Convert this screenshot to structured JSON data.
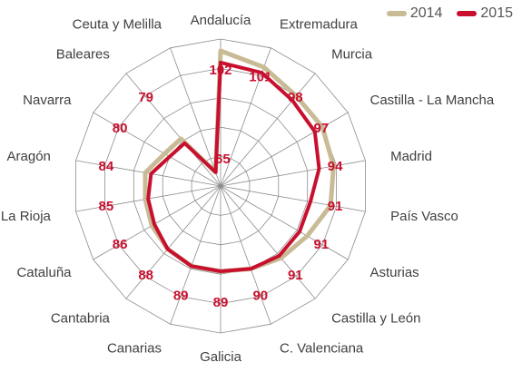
{
  "chart_data": {
    "type": "radar",
    "categories": [
      "Andalucía",
      "Extremadura",
      "Murcia",
      "Castilla - La Mancha",
      "Madrid",
      "País Vasco",
      "Asturias",
      "Castilla y León",
      "C. Valenciana",
      "Galicia",
      "Canarias",
      "Cantabria",
      "Cataluña",
      "La Rioja",
      "Aragón",
      "Navarra",
      "Baleares",
      "Ceuta y Melilla"
    ],
    "series": [
      {
        "name": "2014",
        "color": "#c8bb95",
        "values": [
          106,
          103,
          100,
          100,
          99,
          98,
          94,
          92,
          90,
          89,
          89,
          88,
          87,
          86,
          86,
          82,
          81,
          65
        ]
      },
      {
        "name": "2015",
        "color": "#c8102e",
        "values": [
          102,
          101,
          98,
          97,
          94,
          91,
          91,
          91,
          90,
          89,
          89,
          88,
          86,
          85,
          84,
          80,
          79,
          65
        ]
      }
    ],
    "data_labels": [
      "102",
      "101",
      "98",
      "97",
      "94",
      "91",
      "91",
      "91",
      "90",
      "89",
      "89",
      "88",
      "86",
      "85",
      "84",
      "80",
      "79",
      "65"
    ],
    "rlim": [
      60,
      110
    ],
    "grid": true,
    "legend": "top-right"
  }
}
